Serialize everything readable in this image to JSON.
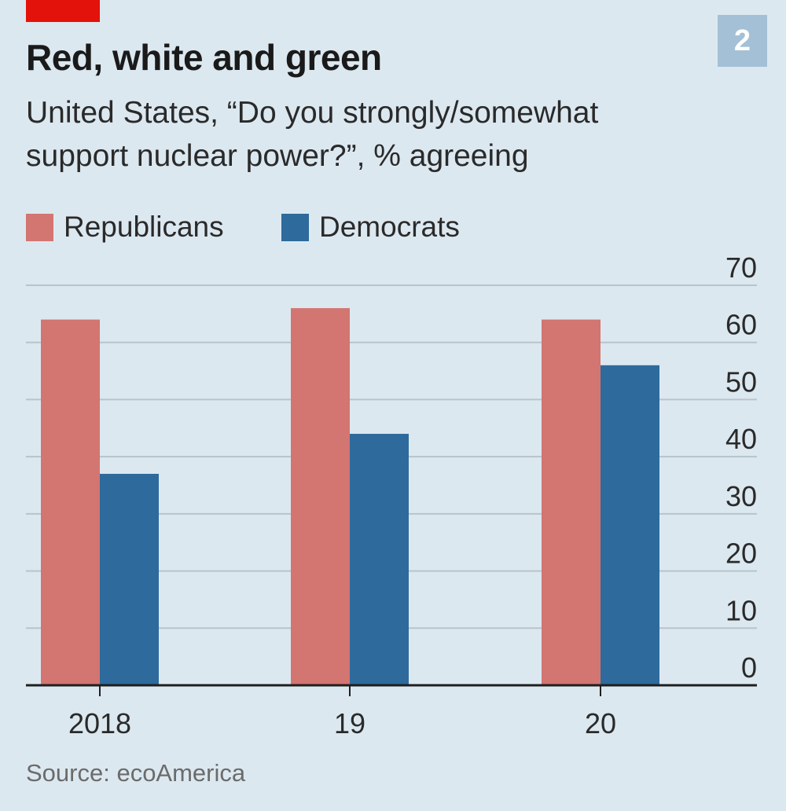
{
  "header": {
    "title": "Red, white and green",
    "subtitle": "United States, “Do you strongly/somewhat support nuclear power?”, % agreeing",
    "badge": "2"
  },
  "source": "Source: ecoAmerica",
  "colors": {
    "background": "#dce8f0",
    "accent_tag": "#e3120b",
    "republicans": "#d37571",
    "democrats": "#2e6a9c",
    "gridline": "#b8c3cc",
    "axis": "#1f1f1f"
  },
  "chart_data": {
    "type": "bar",
    "title": "Red, white and green",
    "subtitle": "United States, “Do you strongly/somewhat support nuclear power?”, % agreeing",
    "categories": [
      "2018",
      "19",
      "20"
    ],
    "series": [
      {
        "name": "Republicans",
        "values": [
          64,
          66,
          64
        ]
      },
      {
        "name": "Democrats",
        "values": [
          37,
          44,
          56
        ]
      }
    ],
    "ylim": [
      0,
      70
    ],
    "yticks": [
      0,
      10,
      20,
      30,
      40,
      50,
      60,
      70
    ],
    "y_axis_side": "right",
    "grid": true,
    "legend_position": "top-left",
    "xlabel": "",
    "ylabel": ""
  }
}
